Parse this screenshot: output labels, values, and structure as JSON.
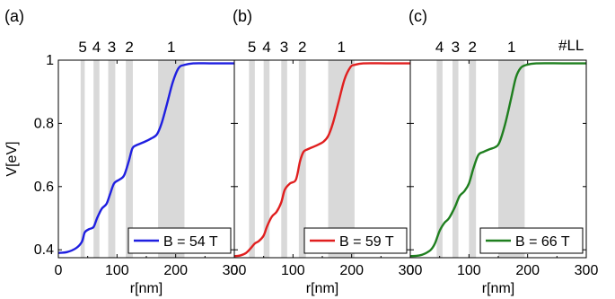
{
  "chart_data": [
    {
      "type": "line",
      "panel_label": "(a)",
      "landau_levels": [
        "5",
        "4",
        "3",
        "2",
        "1"
      ],
      "ll_bands": [
        [
          38,
          45
        ],
        [
          60,
          70
        ],
        [
          85,
          97
        ],
        [
          115,
          127
        ],
        [
          170,
          215
        ]
      ],
      "series": [
        {
          "name": "B = 54 T",
          "color": "#1f1fe0",
          "x": [
            0,
            15,
            30,
            40,
            45,
            52,
            60,
            66,
            74,
            82,
            88,
            95,
            104,
            112,
            120,
            126,
            132,
            145,
            158,
            168,
            176,
            185,
            195,
            205,
            215,
            230,
            260,
            300
          ],
          "y": [
            0.39,
            0.393,
            0.405,
            0.425,
            0.455,
            0.465,
            0.472,
            0.5,
            0.53,
            0.545,
            0.575,
            0.61,
            0.622,
            0.635,
            0.68,
            0.72,
            0.73,
            0.74,
            0.752,
            0.765,
            0.8,
            0.86,
            0.93,
            0.975,
            0.985,
            0.99,
            0.99,
            0.99
          ]
        }
      ]
    },
    {
      "type": "line",
      "panel_label": "(b)",
      "landau_levels": [
        "5",
        "4",
        "3",
        "2",
        "1"
      ],
      "ll_bands": [
        [
          25,
          35
        ],
        [
          50,
          60
        ],
        [
          80,
          90
        ],
        [
          110,
          122
        ],
        [
          160,
          205
        ]
      ],
      "series": [
        {
          "name": "B = 59 T",
          "color": "#e01f1f",
          "x": [
            0,
            10,
            20,
            28,
            35,
            42,
            50,
            56,
            64,
            72,
            80,
            86,
            95,
            105,
            112,
            118,
            125,
            140,
            152,
            160,
            168,
            178,
            188,
            198,
            205,
            220,
            260,
            300
          ],
          "y": [
            0.38,
            0.382,
            0.39,
            0.405,
            0.42,
            0.428,
            0.445,
            0.475,
            0.505,
            0.52,
            0.55,
            0.59,
            0.61,
            0.622,
            0.68,
            0.71,
            0.718,
            0.73,
            0.742,
            0.76,
            0.8,
            0.87,
            0.94,
            0.978,
            0.985,
            0.99,
            0.99,
            0.99
          ]
        }
      ]
    },
    {
      "type": "line",
      "panel_label": "(c)",
      "landau_levels": [
        "4",
        "3",
        "2",
        "1"
      ],
      "ll_bands": [
        [
          45,
          55
        ],
        [
          72,
          82
        ],
        [
          100,
          112
        ],
        [
          150,
          195
        ]
      ],
      "series": [
        {
          "name": "B = 66 T",
          "color": "#1f7f1f",
          "x": [
            0,
            15,
            25,
            35,
            42,
            50,
            58,
            66,
            76,
            84,
            92,
            100,
            108,
            116,
            125,
            135,
            145,
            152,
            162,
            172,
            180,
            188,
            198,
            215,
            260,
            300
          ],
          "y": [
            0.38,
            0.382,
            0.388,
            0.4,
            0.42,
            0.46,
            0.485,
            0.5,
            0.535,
            0.57,
            0.585,
            0.61,
            0.66,
            0.7,
            0.71,
            0.718,
            0.725,
            0.74,
            0.8,
            0.88,
            0.945,
            0.975,
            0.985,
            0.99,
            0.99,
            0.99
          ]
        }
      ]
    }
  ],
  "axes": {
    "xlabel": "r[nm]",
    "ylabel": "V[eV]",
    "xlim": [
      0,
      300
    ],
    "ylim": [
      0.375,
      1.0
    ],
    "xticks": [
      0,
      100,
      200,
      300
    ],
    "yticks": [
      0.4,
      0.6,
      0.8,
      1
    ],
    "ytick_labels": [
      "0.4",
      "0.6",
      "0.8",
      "1"
    ],
    "ll_header": "#LL"
  },
  "colors": {
    "band": "#d9d9d9",
    "axis": "#000000"
  }
}
